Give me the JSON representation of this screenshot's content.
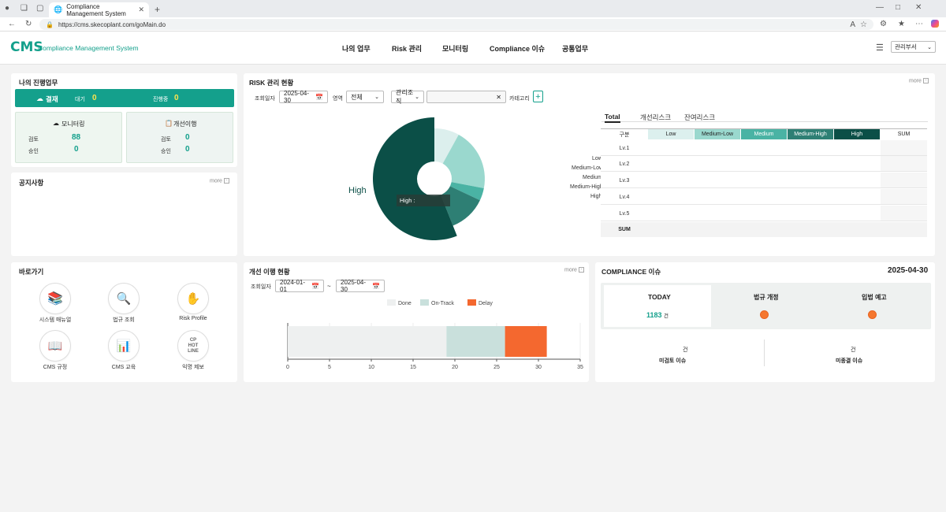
{
  "browser": {
    "tab_title": "Compliance Management System",
    "url": "https://cms.skecoplant.com/goMain.do"
  },
  "header": {
    "logo": "CMS",
    "logo_sub": "Compliance Management System",
    "nav": [
      "나의 업무",
      "Risk 관리",
      "모니터링",
      "Compliance 이슈",
      "공통업무"
    ],
    "dept": "관리부서"
  },
  "my_work": {
    "title": "나의 진행업무",
    "approval": {
      "label": "결재",
      "wait_label": "대기",
      "wait_count": "0",
      "progress_label": "진행중",
      "progress_count": "0"
    },
    "monitoring": {
      "label": "모니터링",
      "review_label": "검토",
      "review_count": "88",
      "approve_label": "승인",
      "approve_count": "0"
    },
    "improvement": {
      "label": "개선이행",
      "review_label": "검토",
      "review_count": "0",
      "approve_label": "승인",
      "approve_count": "0"
    }
  },
  "notice": {
    "title": "공지사항",
    "more": "more"
  },
  "risk": {
    "title": "RISK 관리 현황",
    "more": "more",
    "date_label": "조회일자",
    "date": "2025-04-30",
    "area_label": "영역",
    "area_value": "전체",
    "org_label": "관리조직",
    "category_label": "카테고리",
    "pie_label": "High",
    "tooltip": "High :",
    "tabs": [
      "Total",
      "개선리스크",
      "잔여리스크"
    ],
    "matrix": {
      "corner": "구분",
      "columns": [
        "Low",
        "Medium-Low",
        "Medium",
        "Medium-High",
        "High"
      ],
      "sum_col": "SUM",
      "rows": [
        "Lv.1",
        "Lv.2",
        "Lv.3",
        "Lv.4",
        "Lv.5"
      ],
      "sum_row": "SUM",
      "legend": [
        "Low",
        "Medium-Low",
        "Medium",
        "Medium-High",
        "High"
      ]
    },
    "pie_colors": [
      "#dcefed",
      "#9ad8ce",
      "#4ab3a4",
      "#2e7f74",
      "#0b4f47"
    ],
    "pie_values": [
      8,
      20,
      4,
      12,
      56
    ]
  },
  "shortcuts": {
    "title": "바로가기",
    "items": [
      "시스템 매뉴얼",
      "법규 조회",
      "Risk Profile",
      "CMS 규정",
      "CMS 교육",
      "익명 제보"
    ],
    "hotline_text": [
      "CP",
      "HOT",
      "LINE"
    ]
  },
  "improvement_status": {
    "title": "개선 이행 현황",
    "more": "more",
    "date_label": "조회일자",
    "date_from": "2024-01-01",
    "sep": "~",
    "date_to": "2025-04-30",
    "chart_data": {
      "type": "bar",
      "orientation": "horizontal-stacked",
      "series": [
        {
          "name": "Done",
          "values": [
            19
          ],
          "color": "#eef0f0"
        },
        {
          "name": "On-Track",
          "values": [
            7
          ],
          "color": "#c9e0dc"
        },
        {
          "name": "Delay",
          "values": [
            5
          ],
          "color": "#f4682f"
        }
      ],
      "xlim": [
        0,
        35
      ],
      "xticks": [
        "0",
        "5",
        "10",
        "15",
        "20",
        "25",
        "30",
        "35"
      ]
    }
  },
  "compliance": {
    "title": "COMPLIANCE 이슈",
    "date": "2025-04-30",
    "today_label": "TODAY",
    "today_count": "1183",
    "today_unit": "건",
    "law_label": "법규 개정",
    "pre_label": "입법 예고",
    "unreviewed_unit": "건",
    "unreviewed_label": "미검토 이슈",
    "unresolved_unit": "건",
    "unresolved_label": "미종결 이슈"
  }
}
